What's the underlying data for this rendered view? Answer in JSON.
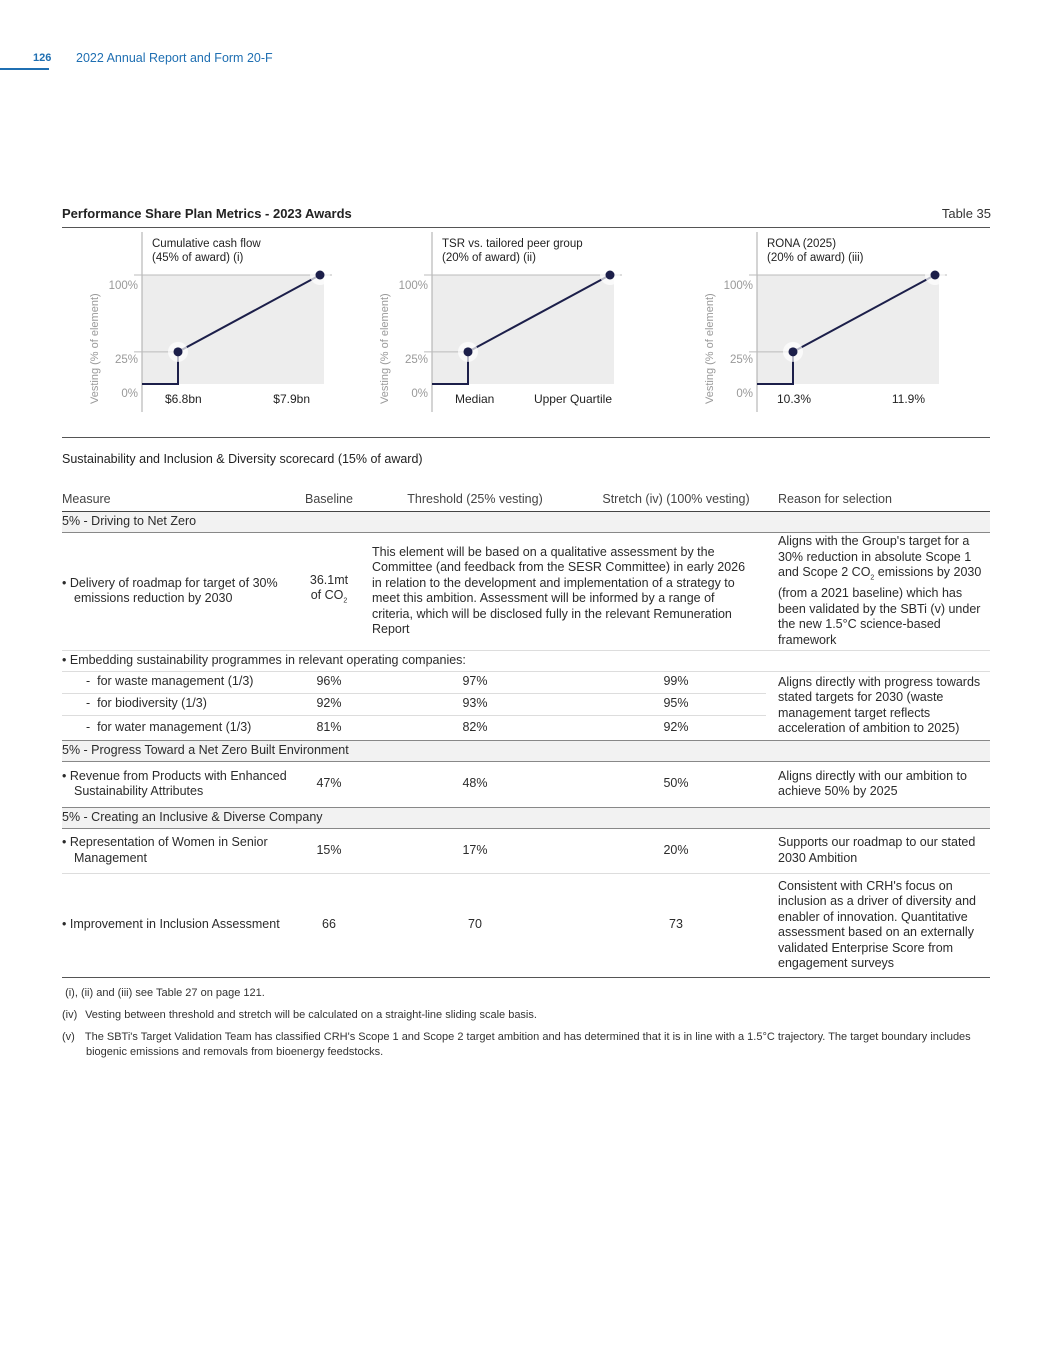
{
  "header": {
    "page_number": "126",
    "report_title": "2022 Annual Report and Form 20-F"
  },
  "title": "Performance Share Plan Metrics - 2023 Awards",
  "table_number": "Table 35",
  "chart_data": [
    {
      "type": "line",
      "title_line1": "Cumulative cash flow",
      "title_line2": "(45% of award) (i)",
      "ylabel": "Vesting (% of element)",
      "yticks": [
        "100%",
        "25%",
        "0%"
      ],
      "x_labels": [
        "$6.8bn",
        "$7.9bn"
      ],
      "points": [
        {
          "x": "below threshold",
          "y": 0
        },
        {
          "x": "$6.8bn",
          "y": 25
        },
        {
          "x": "$7.9bn",
          "y": 100
        }
      ]
    },
    {
      "type": "line",
      "title_line1": "TSR vs. tailored peer group",
      "title_line2": "(20% of award) (ii)",
      "ylabel": "Vesting (% of element)",
      "yticks": [
        "100%",
        "25%",
        "0%"
      ],
      "x_labels": [
        "Median",
        "Upper Quartile"
      ],
      "points": [
        {
          "x": "below threshold",
          "y": 0
        },
        {
          "x": "Median",
          "y": 25
        },
        {
          "x": "Upper Quartile",
          "y": 100
        }
      ]
    },
    {
      "type": "line",
      "title_line1": "RONA (2025)",
      "title_line2": "(20% of award) (iii)",
      "ylabel": "Vesting (% of element)",
      "yticks": [
        "100%",
        "25%",
        "0%"
      ],
      "x_labels": [
        "10.3%",
        "11.9%"
      ],
      "points": [
        {
          "x": "below threshold",
          "y": 0
        },
        {
          "x": "10.3%",
          "y": 25
        },
        {
          "x": "11.9%",
          "y": 100
        }
      ]
    }
  ],
  "scorecard": {
    "subtitle": "Sustainability and Inclusion & Diversity scorecard (15% of award)",
    "headers": [
      "Measure",
      "Baseline",
      "Threshold (25% vesting)",
      "Stretch (iv) (100% vesting)",
      "Reason for selection"
    ],
    "sec1": "5% - Driving to Net Zero",
    "r1": {
      "measure": "Delivery of roadmap for target of 30% emissions reduction by 2030",
      "baseline": "36.1mt of CO",
      "baseline_sub": "2",
      "threshold": "This element will be based on a qualitative assessment by the Committee (and feedback from the SESR Committee) in early 2026 in relation to the development and implementation of a strategy to meet this ambition. Assessment will be informed by a range of criteria, which will be disclosed fully in the relevant Remuneration Report",
      "reason_a": "Aligns with the Group's target for a 30% reduction in absolute Scope 1 and Scope 2 CO",
      "reason_sub": "2",
      "reason_b": " emissions by 2030 (from a 2021 baseline) which has been validated by the SBTi (v) under the new 1.5°C science-based framework"
    },
    "r2": {
      "measure": "Embedding sustainability programmes in relevant operating companies:"
    },
    "sub_rows": [
      {
        "measure": "for waste management (1/3)",
        "baseline": "96%",
        "threshold": "97%",
        "stretch": "99%"
      },
      {
        "measure": "for biodiversity (1/3)",
        "baseline": "92%",
        "threshold": "93%",
        "stretch": "95%"
      },
      {
        "measure": "for water management (1/3)",
        "baseline": "81%",
        "threshold": "82%",
        "stretch": "92%"
      }
    ],
    "sub_reason": "Aligns directly with progress towards stated targets for 2030 (waste management target reflects acceleration of ambition to 2025)",
    "sec2": "5% - Progress Toward a Net Zero Built Environment",
    "r3": {
      "measure": "Revenue from Products with Enhanced Sustainability Attributes",
      "baseline": "47%",
      "threshold": "48%",
      "stretch": "50%",
      "reason": "Aligns directly with our ambition to achieve 50% by 2025"
    },
    "sec3": "5% - Creating an Inclusive & Diverse Company",
    "r4": {
      "measure": "Representation of Women in Senior Management",
      "baseline": "15%",
      "threshold": "17%",
      "stretch": "20%",
      "reason": "Supports our roadmap to our stated 2030 Ambition"
    },
    "r5": {
      "measure": "Improvement in Inclusion Assessment",
      "baseline": "66",
      "threshold": "70",
      "stretch": "73",
      "reason": "Consistent with CRH's focus on inclusion as a driver of diversity and enabler of innovation. Quantitative assessment based on an externally validated Enterprise Score from engagement surveys"
    }
  },
  "footnotes": [
    {
      "key": "(i), (ii) and (iii)",
      "text": "see Table 27 on page 121."
    },
    {
      "key": "(iv)",
      "text": "Vesting between threshold and stretch will be calculated on a straight-line sliding scale basis."
    },
    {
      "key": "(v)",
      "text": "The SBTi's Target Validation Team has classified CRH's Scope 1 and Scope 2 target ambition and has determined that it is in line with a 1.5°C trajectory. The target boundary includes biogenic emissions and removals from bioenergy feedstocks."
    }
  ],
  "colors": {
    "accent": "#1f6fb2",
    "line": "#1c1f4a",
    "plot_bg": "#ededed"
  }
}
